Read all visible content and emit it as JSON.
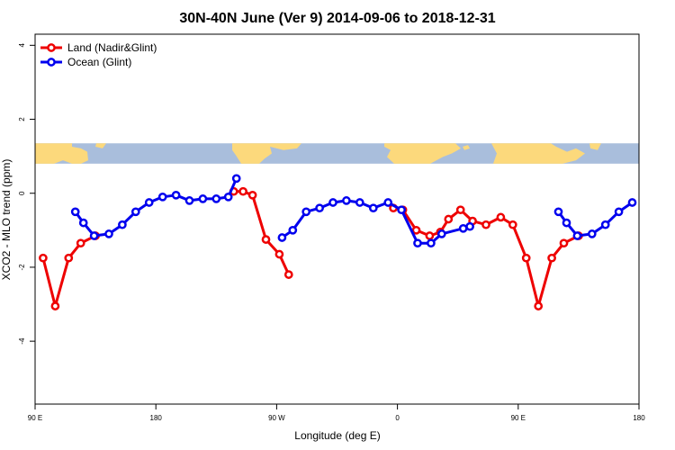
{
  "chart_data": {
    "type": "line",
    "title": "30N-40N June (Ver 9)   2014-09-06 to 2018-12-31",
    "xlabel": "Longitude (deg E)",
    "ylabel": "XCO2 - MLO trend (ppm)",
    "xlim": [
      90,
      540
    ],
    "ylim": [
      -5.7,
      4.3
    ],
    "x_ticks": [
      {
        "value": 90,
        "label": "90 E"
      },
      {
        "value": 180,
        "label": "180"
      },
      {
        "value": 270,
        "label": "90 W"
      },
      {
        "value": 360,
        "label": "0"
      },
      {
        "value": 450,
        "label": "90 E"
      },
      {
        "value": 540,
        "label": "180"
      }
    ],
    "y_ticks": [
      {
        "value": 4,
        "label": "4"
      },
      {
        "value": 2,
        "label": "2"
      },
      {
        "value": 0,
        "label": "0"
      },
      {
        "value": -2,
        "label": "-2"
      },
      {
        "value": -4,
        "label": "-4"
      }
    ],
    "legend_position": "top-left",
    "series": [
      {
        "name": "Land (Nadir&Glint)",
        "color": "#ee0000",
        "segments": [
          [
            [
              96,
              -1.75
            ],
            [
              105,
              -3.05
            ],
            [
              115,
              -1.75
            ],
            [
              124,
              -1.35
            ],
            [
              135,
              -1.15
            ]
          ],
          [
            [
              238,
              0.05
            ],
            [
              245,
              0.05
            ],
            [
              252,
              -0.05
            ],
            [
              262,
              -1.25
            ],
            [
              272,
              -1.65
            ],
            [
              279,
              -2.2
            ]
          ],
          [
            [
              357,
              -0.4
            ],
            [
              364,
              -0.45
            ],
            [
              374,
              -1.0
            ],
            [
              384,
              -1.15
            ],
            [
              392,
              -1.05
            ],
            [
              398,
              -0.7
            ],
            [
              407,
              -0.45
            ],
            [
              416,
              -0.75
            ],
            [
              426,
              -0.85
            ],
            [
              437,
              -0.65
            ],
            [
              446,
              -0.85
            ],
            [
              456,
              -1.75
            ],
            [
              465,
              -3.05
            ],
            [
              475,
              -1.75
            ],
            [
              484,
              -1.35
            ],
            [
              495,
              -1.15
            ]
          ]
        ]
      },
      {
        "name": "Ocean (Glint)",
        "color": "#0000ee",
        "segments": [
          [
            [
              120,
              -0.5
            ],
            [
              126,
              -0.8
            ],
            [
              134,
              -1.15
            ],
            [
              145,
              -1.1
            ],
            [
              155,
              -0.85
            ],
            [
              165,
              -0.5
            ],
            [
              175,
              -0.25
            ],
            [
              185,
              -0.1
            ],
            [
              195,
              -0.05
            ],
            [
              205,
              -0.2
            ],
            [
              215,
              -0.15
            ],
            [
              225,
              -0.15
            ],
            [
              234,
              -0.1
            ],
            [
              240,
              0.4
            ]
          ],
          [
            [
              274,
              -1.2
            ],
            [
              282,
              -1.0
            ],
            [
              292,
              -0.5
            ],
            [
              302,
              -0.4
            ],
            [
              312,
              -0.25
            ],
            [
              322,
              -0.2
            ],
            [
              332,
              -0.25
            ],
            [
              342,
              -0.4
            ],
            [
              353,
              -0.25
            ],
            [
              363,
              -0.45
            ],
            [
              375,
              -1.35
            ],
            [
              385,
              -1.35
            ],
            [
              393,
              -1.1
            ],
            [
              409,
              -0.95
            ],
            [
              414,
              -0.9
            ]
          ],
          [
            [
              480,
              -0.5
            ],
            [
              486,
              -0.8
            ],
            [
              494,
              -1.15
            ],
            [
              505,
              -1.1
            ],
            [
              515,
              -0.85
            ],
            [
              525,
              -0.5
            ],
            [
              535,
              -0.25
            ]
          ]
        ]
      }
    ],
    "map_band": {
      "y_range": [
        0.8,
        1.35
      ],
      "ocean_color": "#a9bedc",
      "land_color": "#fcd97c"
    }
  }
}
